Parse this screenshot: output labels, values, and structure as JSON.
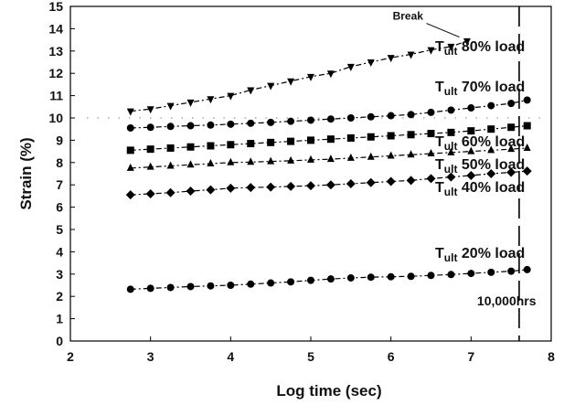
{
  "chart_data": {
    "type": "scatter",
    "xlabel": "Log time (sec)",
    "ylabel": "Strain (%)",
    "xlim": [
      2,
      8
    ],
    "ylim": [
      0,
      15
    ],
    "xticks": [
      2,
      3,
      4,
      5,
      6,
      7,
      8
    ],
    "yticks": [
      0,
      1,
      2,
      3,
      4,
      5,
      6,
      7,
      8,
      9,
      10,
      11,
      12,
      13,
      14,
      15
    ],
    "grid": false,
    "series": [
      {
        "label_main": "T",
        "label_sub": "ult",
        "label_rest": " 80% load",
        "marker": "triangle-down",
        "x": [
          2.75,
          3.0,
          3.25,
          3.5,
          3.75,
          4.0,
          4.25,
          4.5,
          4.75,
          5.0,
          5.25,
          5.5,
          5.75,
          6.0,
          6.25,
          6.5,
          6.75,
          6.95
        ],
        "y": [
          10.3,
          10.4,
          10.55,
          10.7,
          10.85,
          11.0,
          11.25,
          11.45,
          11.65,
          11.85,
          12.0,
          12.3,
          12.5,
          12.7,
          12.85,
          13.05,
          13.2,
          13.45
        ]
      },
      {
        "label_main": "T",
        "label_sub": "ult",
        "label_rest": " 70% load",
        "marker": "circle",
        "x": [
          2.75,
          3.0,
          3.25,
          3.5,
          3.75,
          4.0,
          4.25,
          4.5,
          4.75,
          5.0,
          5.25,
          5.5,
          5.75,
          6.0,
          6.25,
          6.5,
          6.75,
          7.0,
          7.25,
          7.5,
          7.7
        ],
        "y": [
          9.55,
          9.58,
          9.62,
          9.65,
          9.68,
          9.72,
          9.76,
          9.8,
          9.85,
          9.9,
          9.95,
          10.0,
          10.05,
          10.1,
          10.15,
          10.25,
          10.35,
          10.45,
          10.55,
          10.65,
          10.8
        ]
      },
      {
        "label_main": "T",
        "label_sub": "ult",
        "label_rest": " 60% load",
        "marker": "square",
        "x": [
          2.75,
          3.0,
          3.25,
          3.5,
          3.75,
          4.0,
          4.25,
          4.5,
          4.75,
          5.0,
          5.25,
          5.5,
          5.75,
          6.0,
          6.25,
          6.5,
          6.75,
          7.0,
          7.25,
          7.5,
          7.7
        ],
        "y": [
          8.55,
          8.6,
          8.65,
          8.7,
          8.75,
          8.8,
          8.85,
          8.9,
          8.95,
          9.0,
          9.05,
          9.1,
          9.15,
          9.2,
          9.25,
          9.3,
          9.35,
          9.42,
          9.5,
          9.58,
          9.65
        ]
      },
      {
        "label_main": "T",
        "label_sub": "ult",
        "label_rest": " 50% load",
        "marker": "triangle-up",
        "x": [
          2.75,
          3.0,
          3.25,
          3.5,
          3.75,
          4.0,
          4.25,
          4.5,
          4.75,
          5.0,
          5.25,
          5.5,
          5.75,
          6.0,
          6.25,
          6.5,
          6.75,
          7.0,
          7.25,
          7.5,
          7.7
        ],
        "y": [
          7.75,
          7.8,
          7.85,
          7.9,
          7.95,
          8.0,
          8.02,
          8.05,
          8.08,
          8.12,
          8.15,
          8.2,
          8.25,
          8.3,
          8.35,
          8.4,
          8.45,
          8.5,
          8.55,
          8.6,
          8.65
        ]
      },
      {
        "label_main": "T",
        "label_sub": "ult",
        "label_rest": " 40% load",
        "marker": "diamond",
        "x": [
          2.75,
          3.0,
          3.25,
          3.5,
          3.75,
          4.0,
          4.25,
          4.5,
          4.75,
          5.0,
          5.25,
          5.5,
          5.75,
          6.0,
          6.25,
          6.5,
          6.75,
          7.0,
          7.25,
          7.5,
          7.7
        ],
        "y": [
          6.55,
          6.6,
          6.65,
          6.72,
          6.78,
          6.85,
          6.88,
          6.9,
          6.93,
          6.96,
          7.0,
          7.05,
          7.1,
          7.15,
          7.2,
          7.28,
          7.35,
          7.42,
          7.5,
          7.56,
          7.62
        ]
      },
      {
        "label_main": "T",
        "label_sub": "ult",
        "label_rest": " 20% load",
        "marker": "circle",
        "x": [
          2.75,
          3.0,
          3.25,
          3.5,
          3.75,
          4.0,
          4.25,
          4.5,
          4.75,
          5.0,
          5.25,
          5.5,
          5.75,
          6.0,
          6.25,
          6.5,
          6.75,
          7.0,
          7.25,
          7.5,
          7.7
        ],
        "y": [
          2.32,
          2.36,
          2.4,
          2.44,
          2.47,
          2.5,
          2.55,
          2.6,
          2.65,
          2.72,
          2.78,
          2.83,
          2.86,
          2.88,
          2.9,
          2.94,
          2.98,
          3.03,
          3.08,
          3.13,
          3.2
        ]
      }
    ],
    "reference_line": {
      "y": 10
    },
    "vertical_marker": {
      "x": 7.6,
      "label": "10,000hrs"
    },
    "annotations": [
      {
        "text": "Break",
        "x": 6.9,
        "y": 13.5
      }
    ]
  }
}
